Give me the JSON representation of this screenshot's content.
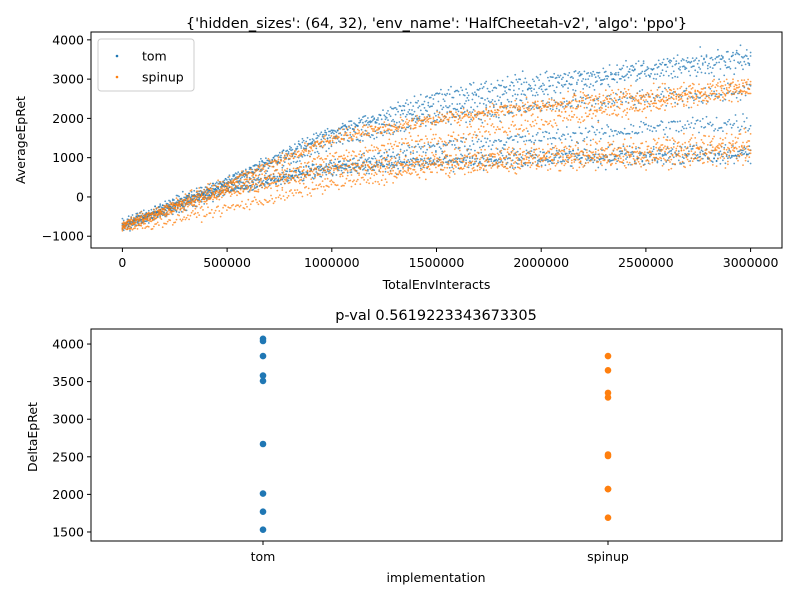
{
  "chart_data": [
    {
      "type": "scatter",
      "title": "{'hidden_sizes': (64, 32), 'env_name': 'HalfCheetah-v2', 'algo': 'ppo'}",
      "xlabel": "TotalEnvInteracts",
      "ylabel": "AverageEpRet",
      "xlim": [
        -150000,
        3150000
      ],
      "ylim": [
        -1300,
        4200
      ],
      "xticks": [
        0,
        500000,
        1000000,
        1500000,
        2000000,
        2500000,
        3000000
      ],
      "xtick_labels": [
        "0",
        "500000",
        "1000000",
        "1500000",
        "2000000",
        "2500000",
        "3000000"
      ],
      "yticks": [
        -1000,
        0,
        1000,
        2000,
        3000,
        4000
      ],
      "ytick_labels": [
        "−1000",
        "0",
        "1000",
        "2000",
        "3000",
        "4000"
      ],
      "legend_position": "upper-left",
      "grid": false,
      "series": [
        {
          "name": "tom",
          "color": "#1f77b4",
          "curves": [
            {
              "x": [
                0,
                500000,
                1000000,
                1500000,
                2000000,
                2500000,
                3000000
              ],
              "y": [
                -750,
                250,
                750,
                850,
                950,
                1000,
                1050
              ]
            },
            {
              "x": [
                0,
                500000,
                1000000,
                1500000,
                2000000,
                2500000,
                3000000
              ],
              "y": [
                -700,
                350,
                1700,
                2250,
                2700,
                3150,
                3500
              ]
            },
            {
              "x": [
                0,
                500000,
                1000000,
                1500000,
                2000000,
                2500000,
                3000000
              ],
              "y": [
                -650,
                450,
                1600,
                2600,
                3000,
                3300,
                3600
              ]
            },
            {
              "x": [
                0,
                500000,
                1000000,
                1500000,
                2000000,
                2500000,
                3000000
              ],
              "y": [
                -700,
                350,
                1400,
                2000,
                2300,
                2500,
                2700
              ]
            },
            {
              "x": [
                0,
                500000,
                1000000,
                1500000,
                2000000,
                2500000,
                3000000
              ],
              "y": [
                -750,
                200,
                800,
                1300,
                1500,
                1750,
                1900
              ]
            },
            {
              "x": [
                0,
                500000,
                1000000,
                1500000,
                2000000,
                2500000,
                3000000
              ],
              "y": [
                -800,
                150,
                700,
                950,
                1050,
                1100,
                1150
              ]
            }
          ]
        },
        {
          "name": "spinup",
          "color": "#ff7f0e",
          "curves": [
            {
              "x": [
                0,
                500000,
                1000000,
                1500000,
                2000000,
                2500000,
                3000000
              ],
              "y": [
                -850,
                -300,
                300,
                700,
                850,
                950,
                1050
              ]
            },
            {
              "x": [
                0,
                500000,
                1000000,
                1500000,
                2000000,
                2500000,
                3000000
              ],
              "y": [
                -700,
                300,
                1500,
                2000,
                2350,
                2600,
                2900
              ]
            },
            {
              "x": [
                0,
                500000,
                1000000,
                1500000,
                2000000,
                2500000,
                3000000
              ],
              "y": [
                -750,
                250,
                1000,
                1500,
                1900,
                2300,
                2700
              ]
            },
            {
              "x": [
                0,
                500000,
                1000000,
                1500000,
                2000000,
                2500000,
                3000000
              ],
              "y": [
                -750,
                150,
                750,
                1000,
                1150,
                1300,
                1450
              ]
            },
            {
              "x": [
                0,
                500000,
                1000000,
                1500000,
                2000000,
                2500000,
                3000000
              ],
              "y": [
                -800,
                100,
                650,
                850,
                1000,
                1100,
                1250
              ]
            },
            {
              "x": [
                0,
                500000,
                1000000,
                1500000,
                2000000,
                2500000,
                3000000
              ],
              "y": [
                -700,
                400,
                1500,
                1950,
                2300,
                2500,
                2750
              ]
            }
          ]
        }
      ]
    },
    {
      "type": "scatter",
      "title": "p-val 0.5619223343673305",
      "xlabel": "implementation",
      "ylabel": "DeltaEpRet",
      "categories": [
        "tom",
        "spinup"
      ],
      "ylim": [
        1380,
        4200
      ],
      "yticks": [
        1500,
        2000,
        2500,
        3000,
        3500,
        4000
      ],
      "ytick_labels": [
        "1500",
        "2000",
        "2500",
        "3000",
        "3500",
        "4000"
      ],
      "grid": false,
      "series": [
        {
          "name": "tom",
          "color": "#1f77b4",
          "values": [
            4070,
            4040,
            3840,
            3580,
            3510,
            2670,
            2010,
            1770,
            1530
          ]
        },
        {
          "name": "spinup",
          "color": "#ff7f0e",
          "values": [
            3840,
            3650,
            3350,
            3290,
            2530,
            2510,
            2070,
            2070,
            1690
          ]
        }
      ]
    }
  ]
}
